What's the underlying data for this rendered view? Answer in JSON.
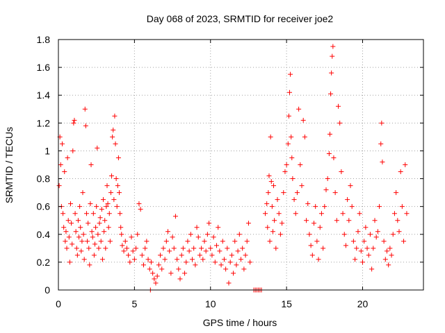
{
  "chart_data": {
    "type": "scatter",
    "title": "Day 068 of 2023, SRMTID for receiver joe2",
    "xlabel": "GPS time / hours",
    "ylabel": "SRMTID / TECUs",
    "xlim": [
      0,
      24
    ],
    "ylim": [
      0,
      1.8
    ],
    "xticks": [
      0,
      5,
      10,
      15,
      20
    ],
    "xtick_labels": [
      "0",
      "5",
      "10",
      "15",
      "20"
    ],
    "yticks": [
      0,
      0.2,
      0.4,
      0.6,
      0.8,
      1,
      1.2,
      1.4,
      1.6,
      1.8
    ],
    "ytick_labels": [
      "0",
      "0.2",
      "0.4",
      "0.6",
      "0.8",
      "1",
      "1.2",
      "1.4",
      "1.6",
      "1.8"
    ],
    "grid": true,
    "marker": "+",
    "color": "#ff0000",
    "series": [
      {
        "name": "SRMTID",
        "points": [
          [
            0.05,
            0.75
          ],
          [
            0.1,
            1.1
          ],
          [
            0.15,
            0.9
          ],
          [
            0.2,
            0.6
          ],
          [
            0.25,
            1.05
          ],
          [
            0.3,
            0.55
          ],
          [
            0.35,
            0.45
          ],
          [
            0.4,
            0.85
          ],
          [
            0.45,
            0.35
          ],
          [
            0.5,
            0.42
          ],
          [
            0.55,
            0.3
          ],
          [
            0.6,
            0.95
          ],
          [
            0.65,
            0.5
          ],
          [
            0.7,
            0.38
          ],
          [
            0.75,
            0.2
          ],
          [
            0.8,
            0.62
          ],
          [
            0.85,
            0.48
          ],
          [
            0.9,
            0.33
          ],
          [
            0.95,
            1.0
          ],
          [
            1.0,
            1.2
          ],
          [
            1.05,
            1.22
          ],
          [
            1.1,
            0.55
          ],
          [
            1.15,
            0.42
          ],
          [
            1.2,
            0.3
          ],
          [
            1.25,
            0.25
          ],
          [
            1.3,
            0.5
          ],
          [
            1.35,
            0.38
          ],
          [
            1.4,
            0.6
          ],
          [
            1.45,
            0.45
          ],
          [
            1.5,
            0.28
          ],
          [
            1.55,
            0.35
          ],
          [
            1.6,
            0.7
          ],
          [
            1.65,
            0.4
          ],
          [
            1.7,
            0.22
          ],
          [
            1.75,
            1.3
          ],
          [
            1.8,
            1.18
          ],
          [
            1.85,
            0.55
          ],
          [
            1.9,
            0.35
          ],
          [
            1.95,
            0.48
          ],
          [
            2.0,
            0.3
          ],
          [
            2.05,
            0.18
          ],
          [
            2.1,
            0.62
          ],
          [
            2.15,
            0.9
          ],
          [
            2.2,
            0.42
          ],
          [
            2.25,
            0.38
          ],
          [
            2.3,
            0.55
          ],
          [
            2.35,
            0.25
          ],
          [
            2.4,
            0.33
          ],
          [
            2.45,
            0.45
          ],
          [
            2.5,
            0.6
          ],
          [
            2.55,
            1.02
          ],
          [
            2.6,
            0.4
          ],
          [
            2.65,
            0.3
          ],
          [
            2.7,
            0.48
          ],
          [
            2.75,
            0.52
          ],
          [
            2.8,
            0.35
          ],
          [
            2.85,
            0.58
          ],
          [
            2.9,
            0.22
          ],
          [
            2.95,
            0.65
          ],
          [
            3.0,
            0.42
          ],
          [
            3.05,
            0.5
          ],
          [
            3.1,
            0.3
          ],
          [
            3.15,
            0.6
          ],
          [
            3.2,
            0.75
          ],
          [
            3.25,
            0.62
          ],
          [
            3.3,
            0.45
          ],
          [
            3.35,
            0.55
          ],
          [
            3.4,
            0.35
          ],
          [
            3.45,
            0.7
          ],
          [
            3.5,
            0.82
          ],
          [
            3.55,
            1.1
          ],
          [
            3.6,
            1.15
          ],
          [
            3.65,
            0.65
          ],
          [
            3.7,
            1.25
          ],
          [
            3.75,
            1.05
          ],
          [
            3.8,
            0.8
          ],
          [
            3.85,
            0.6
          ],
          [
            3.9,
            0.75
          ],
          [
            3.95,
            0.95
          ],
          [
            4.0,
            0.7
          ],
          [
            4.05,
            0.55
          ],
          [
            4.1,
            0.45
          ],
          [
            4.15,
            0.4
          ],
          [
            4.2,
            0.32
          ],
          [
            4.3,
            0.28
          ],
          [
            4.4,
            0.35
          ],
          [
            4.5,
            0.3
          ],
          [
            4.6,
            0.25
          ],
          [
            4.7,
            0.2
          ],
          [
            4.8,
            0.38
          ],
          [
            4.9,
            0.28
          ],
          [
            5.0,
            0.22
          ],
          [
            5.1,
            0.3
          ],
          [
            5.2,
            0.4
          ],
          [
            5.3,
            0.62
          ],
          [
            5.4,
            0.58
          ],
          [
            5.5,
            0.25
          ],
          [
            5.6,
            0.18
          ],
          [
            5.7,
            0.3
          ],
          [
            5.8,
            0.35
          ],
          [
            5.9,
            0.22
          ],
          [
            6.0,
            0.15
          ],
          [
            6.05,
            0.0
          ],
          [
            6.1,
            0.2
          ],
          [
            6.2,
            0.12
          ],
          [
            6.3,
            0.08
          ],
          [
            6.4,
            0.05
          ],
          [
            6.5,
            0.1
          ],
          [
            6.6,
            0.18
          ],
          [
            6.7,
            0.25
          ],
          [
            6.8,
            0.15
          ],
          [
            6.9,
            0.3
          ],
          [
            7.0,
            0.22
          ],
          [
            7.1,
            0.35
          ],
          [
            7.2,
            0.42
          ],
          [
            7.3,
            0.28
          ],
          [
            7.4,
            0.12
          ],
          [
            7.5,
            0.38
          ],
          [
            7.6,
            0.3
          ],
          [
            7.7,
            0.53
          ],
          [
            7.8,
            0.22
          ],
          [
            7.9,
            0.15
          ],
          [
            8.0,
            0.08
          ],
          [
            8.1,
            0.25
          ],
          [
            8.2,
            0.3
          ],
          [
            8.3,
            0.12
          ],
          [
            8.4,
            0.2
          ],
          [
            8.5,
            0.35
          ],
          [
            8.6,
            0.28
          ],
          [
            8.7,
            0.4
          ],
          [
            8.8,
            0.22
          ],
          [
            8.9,
            0.3
          ],
          [
            9.0,
            0.18
          ],
          [
            9.1,
            0.45
          ],
          [
            9.2,
            0.38
          ],
          [
            9.3,
            0.25
          ],
          [
            9.4,
            0.3
          ],
          [
            9.5,
            0.22
          ],
          [
            9.6,
            0.35
          ],
          [
            9.7,
            0.28
          ],
          [
            9.8,
            0.4
          ],
          [
            9.9,
            0.48
          ],
          [
            10.0,
            0.3
          ],
          [
            10.1,
            0.25
          ],
          [
            10.2,
            0.38
          ],
          [
            10.3,
            0.2
          ],
          [
            10.4,
            0.32
          ],
          [
            10.5,
            0.45
          ],
          [
            10.6,
            0.28
          ],
          [
            10.7,
            0.18
          ],
          [
            10.8,
            0.35
          ],
          [
            10.9,
            0.22
          ],
          [
            11.0,
            0.15
          ],
          [
            11.1,
            0.3
          ],
          [
            11.2,
            0.05
          ],
          [
            11.3,
            0.2
          ],
          [
            11.4,
            0.25
          ],
          [
            11.5,
            0.12
          ],
          [
            11.6,
            0.35
          ],
          [
            11.7,
            0.18
          ],
          [
            11.8,
            0.28
          ],
          [
            11.9,
            0.4
          ],
          [
            12.0,
            0.22
          ],
          [
            12.1,
            0.3
          ],
          [
            12.2,
            0.15
          ],
          [
            12.3,
            0.25
          ],
          [
            12.4,
            0.35
          ],
          [
            12.5,
            0.48
          ],
          [
            12.6,
            0.2
          ],
          [
            12.85,
            0.0
          ],
          [
            12.95,
            0.0
          ],
          [
            13.05,
            0.0
          ],
          [
            13.15,
            0.0
          ],
          [
            13.25,
            0.0
          ],
          [
            13.35,
            0.0
          ],
          [
            13.6,
            0.55
          ],
          [
            13.7,
            0.62
          ],
          [
            13.75,
            0.45
          ],
          [
            13.8,
            0.7
          ],
          [
            13.85,
            0.82
          ],
          [
            13.9,
            0.35
          ],
          [
            13.95,
            1.1
          ],
          [
            14.0,
            0.78
          ],
          [
            14.05,
            0.6
          ],
          [
            14.1,
            0.42
          ],
          [
            14.15,
            0.75
          ],
          [
            14.2,
            0.5
          ],
          [
            14.3,
            0.3
          ],
          [
            14.4,
            0.65
          ],
          [
            14.5,
            0.55
          ],
          [
            14.6,
            0.4
          ],
          [
            14.7,
            0.48
          ],
          [
            14.8,
            0.7
          ],
          [
            14.9,
            0.85
          ],
          [
            15.0,
            0.9
          ],
          [
            15.1,
            1.05
          ],
          [
            15.15,
            1.25
          ],
          [
            15.2,
            1.42
          ],
          [
            15.25,
            1.55
          ],
          [
            15.3,
            1.1
          ],
          [
            15.35,
            0.95
          ],
          [
            15.4,
            0.8
          ],
          [
            15.5,
            0.65
          ],
          [
            15.6,
            0.55
          ],
          [
            15.7,
            0.7
          ],
          [
            15.8,
            1.3
          ],
          [
            15.9,
            0.9
          ],
          [
            16.0,
            0.75
          ],
          [
            16.1,
            1.22
          ],
          [
            16.2,
            1.1
          ],
          [
            16.3,
            0.5
          ],
          [
            16.4,
            0.62
          ],
          [
            16.5,
            0.4
          ],
          [
            16.6,
            0.32
          ],
          [
            16.7,
            0.25
          ],
          [
            16.8,
            0.48
          ],
          [
            16.9,
            0.6
          ],
          [
            17.0,
            0.35
          ],
          [
            17.1,
            0.22
          ],
          [
            17.2,
            0.45
          ],
          [
            17.3,
            0.55
          ],
          [
            17.4,
            0.3
          ],
          [
            17.5,
            0.6
          ],
          [
            17.6,
            0.72
          ],
          [
            17.7,
            0.8
          ],
          [
            17.8,
            0.98
          ],
          [
            17.85,
            1.12
          ],
          [
            17.9,
            1.41
          ],
          [
            17.95,
            1.56
          ],
          [
            18.0,
            1.68
          ],
          [
            18.05,
            1.75
          ],
          [
            18.1,
            0.95
          ],
          [
            18.2,
            0.7
          ],
          [
            18.3,
            0.5
          ],
          [
            18.4,
            1.32
          ],
          [
            18.5,
            1.2
          ],
          [
            18.6,
            0.85
          ],
          [
            18.7,
            0.55
          ],
          [
            18.8,
            0.4
          ],
          [
            18.9,
            0.32
          ],
          [
            19.0,
            0.65
          ],
          [
            19.1,
            0.5
          ],
          [
            19.2,
            0.75
          ],
          [
            19.3,
            0.6
          ],
          [
            19.4,
            0.35
          ],
          [
            19.5,
            0.22
          ],
          [
            19.6,
            0.3
          ],
          [
            19.7,
            0.42
          ],
          [
            19.8,
            0.55
          ],
          [
            19.9,
            0.28
          ],
          [
            20.0,
            0.2
          ],
          [
            20.1,
            0.35
          ],
          [
            20.2,
            0.45
          ],
          [
            20.3,
            0.3
          ],
          [
            20.4,
            0.25
          ],
          [
            20.5,
            0.4
          ],
          [
            20.6,
            0.15
          ],
          [
            20.7,
            0.3
          ],
          [
            20.8,
            0.5
          ],
          [
            20.9,
            0.38
          ],
          [
            21.0,
            0.42
          ],
          [
            21.1,
            0.6
          ],
          [
            21.2,
            1.05
          ],
          [
            21.25,
            1.2
          ],
          [
            21.3,
            0.92
          ],
          [
            21.4,
            0.35
          ],
          [
            21.5,
            0.22
          ],
          [
            21.6,
            0.28
          ],
          [
            21.7,
            0.18
          ],
          [
            21.8,
            0.3
          ],
          [
            21.9,
            0.25
          ],
          [
            22.0,
            0.4
          ],
          [
            22.1,
            0.55
          ],
          [
            22.2,
            0.7
          ],
          [
            22.3,
            0.5
          ],
          [
            22.4,
            0.42
          ],
          [
            22.5,
            0.85
          ],
          [
            22.6,
            0.6
          ],
          [
            22.7,
            0.35
          ],
          [
            22.8,
            0.9
          ],
          [
            22.9,
            0.55
          ]
        ]
      }
    ]
  }
}
